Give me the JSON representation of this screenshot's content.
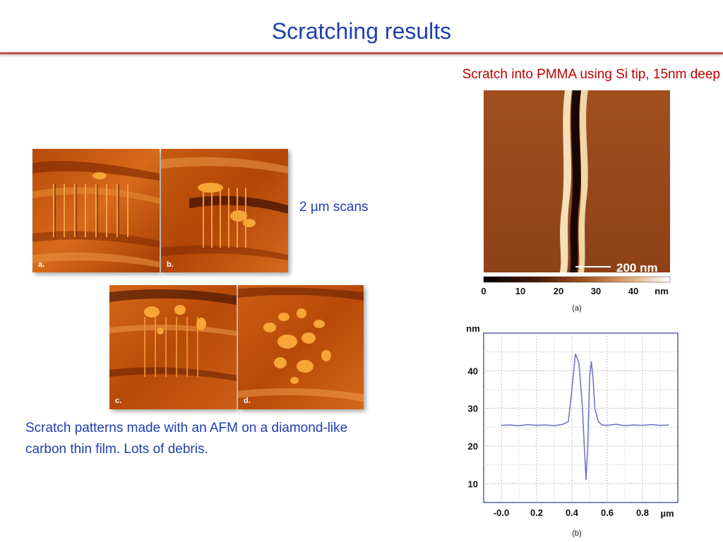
{
  "slide": {
    "title": "Scratching results",
    "pmma_caption": "Scratch into PMMA using Si tip, 15nm deep",
    "scan_label": "2 µm scans",
    "description": "Scratch patterns made with an AFM on a diamond-like carbon thin film. Lots of debris."
  },
  "afm_panels": [
    {
      "label": "a."
    },
    {
      "label": "b."
    },
    {
      "label": "c."
    },
    {
      "label": "d."
    }
  ],
  "pmma_image": {
    "scale_bar": "200 nm",
    "colorbar_ticks": [
      "0",
      "10",
      "20",
      "30",
      "40"
    ],
    "colorbar_unit": "nm",
    "panel_label": "(a)"
  },
  "chart_data": {
    "type": "line",
    "panel_label": "(b)",
    "ylabel": "nm",
    "xlabel": "µm",
    "xlim": [
      -0.1,
      1.0
    ],
    "ylim": [
      5,
      50
    ],
    "x_ticks": [
      "-0.0",
      "0.2",
      "0.4",
      "0.6",
      "0.8"
    ],
    "x_tick_values": [
      0.0,
      0.2,
      0.4,
      0.6,
      0.8
    ],
    "y_ticks": [
      "10",
      "20",
      "30",
      "40"
    ],
    "y_tick_values": [
      10,
      20,
      30,
      40
    ],
    "grid": true,
    "series": [
      {
        "color": "#6a6fc9",
        "x": [
          -0.0,
          0.05,
          0.1,
          0.15,
          0.2,
          0.25,
          0.3,
          0.35,
          0.38,
          0.4,
          0.42,
          0.44,
          0.46,
          0.47,
          0.48,
          0.49,
          0.5,
          0.51,
          0.52,
          0.53,
          0.55,
          0.57,
          0.6,
          0.65,
          0.7,
          0.75,
          0.8,
          0.85,
          0.9,
          0.95
        ],
        "y": [
          25.5,
          25.6,
          25.4,
          25.7,
          25.5,
          25.6,
          25.4,
          25.8,
          26.5,
          35.0,
          44.5,
          42.0,
          30.0,
          20.0,
          11.0,
          20.0,
          38.0,
          42.5,
          38.0,
          30.0,
          26.5,
          25.6,
          25.5,
          25.8,
          25.4,
          25.6,
          25.5,
          25.7,
          25.5,
          25.6
        ]
      }
    ]
  }
}
